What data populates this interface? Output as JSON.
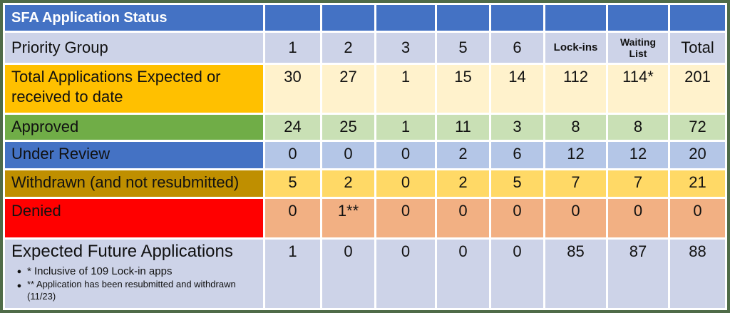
{
  "title": "SFA Application Status",
  "header": {
    "row_label": "Priority Group",
    "columns": [
      "1",
      "2",
      "3",
      "5",
      "6",
      "Lock-ins",
      "Waiting List",
      "Total"
    ]
  },
  "rows": [
    {
      "label": "Total Applications Expected or received to date",
      "values": [
        "30",
        "27",
        "1",
        "15",
        "14",
        "112",
        "114*",
        "201"
      ]
    },
    {
      "label": "Approved",
      "values": [
        "24",
        "25",
        "1",
        "11",
        "3",
        "8",
        "8",
        "72"
      ]
    },
    {
      "label": "Under Review",
      "values": [
        "0",
        "0",
        "0",
        "2",
        "6",
        "12",
        "12",
        "20"
      ]
    },
    {
      "label": "Withdrawn (and not resubmitted)",
      "values": [
        "5",
        "2",
        "0",
        "2",
        "5",
        "7",
        "7",
        "21"
      ]
    },
    {
      "label": "Denied",
      "values": [
        "0",
        "1**",
        "0",
        "0",
        "0",
        "0",
        "0",
        "0"
      ]
    },
    {
      "label": "Expected Future Applications",
      "values": [
        "1",
        "0",
        "0",
        "0",
        "0",
        "85",
        "87",
        "88"
      ]
    }
  ],
  "footnotes": [
    "* Inclusive of 109 Lock-in apps",
    "** Application has been resubmitted and withdrawn (11/23)"
  ],
  "colors": {
    "header_blue": "#4472C4",
    "lavender": "#CDD3E8",
    "orange_label": "#FFC000",
    "cream": "#FFF2CC",
    "green_label": "#70AD47",
    "light_green": "#C9E0B5",
    "light_blue": "#B4C6E7",
    "dark_gold": "#BF8F00",
    "gold": "#FFD966",
    "red": "#FF0000",
    "salmon": "#F2B083",
    "outer_border_green": "#4F6B48"
  },
  "chart_data": {
    "type": "table",
    "title": "SFA Application Status",
    "columns": [
      "Priority Group",
      "1",
      "2",
      "3",
      "5",
      "6",
      "Lock-ins",
      "Waiting List",
      "Total"
    ],
    "rows": [
      [
        "Total Applications Expected or received to date",
        "30",
        "27",
        "1",
        "15",
        "14",
        "112",
        "114*",
        "201"
      ],
      [
        "Approved",
        "24",
        "25",
        "1",
        "11",
        "3",
        "8",
        "8",
        "72"
      ],
      [
        "Under Review",
        "0",
        "0",
        "0",
        "2",
        "6",
        "12",
        "12",
        "20"
      ],
      [
        "Withdrawn (and not resubmitted)",
        "5",
        "2",
        "0",
        "2",
        "5",
        "7",
        "7",
        "21"
      ],
      [
        "Denied",
        "0",
        "1**",
        "0",
        "0",
        "0",
        "0",
        "0",
        "0"
      ],
      [
        "Expected Future Applications",
        "1",
        "0",
        "0",
        "0",
        "0",
        "85",
        "87",
        "88"
      ]
    ]
  }
}
